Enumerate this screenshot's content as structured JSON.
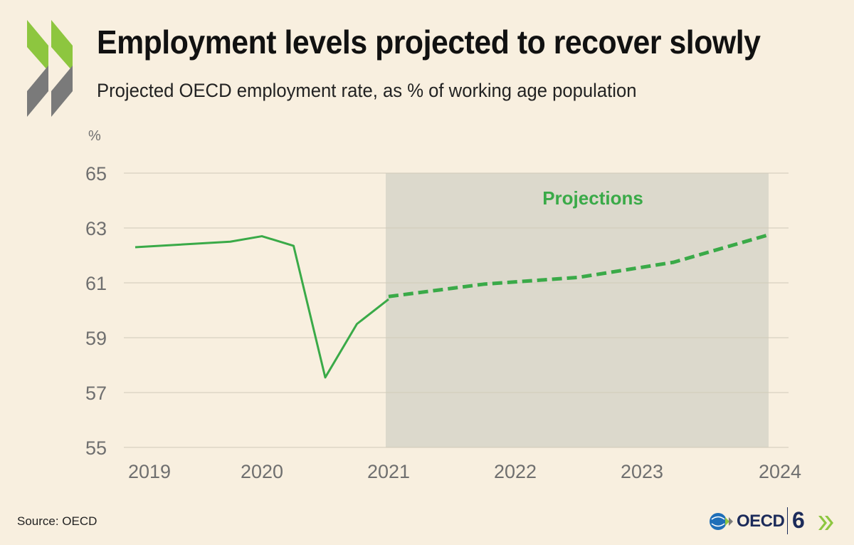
{
  "header": {
    "title": "Employment levels projected to recover slowly",
    "subtitle": "Projected OECD employment rate, as % of working age population"
  },
  "footer": {
    "source": "Source: OECD",
    "logo_text": "OECD",
    "anniversary_text": "6"
  },
  "colors": {
    "background": "#f8efdf",
    "series": "#3aaa48",
    "projection_band": "#dcd9cc",
    "axis_text": "#6f6f6f",
    "grid": "#cfcab8",
    "logo_green": "#8dc63f",
    "logo_grey": "#7a7a7a",
    "logo_navy": "#1c2b5a"
  },
  "icons": {
    "brand": "oecd-chevrons-icon",
    "globe": "oecd-globe-icon"
  },
  "chart_data": {
    "type": "line",
    "title": "Employment levels projected to recover slowly",
    "subtitle": "Projected OECD employment rate, as % of working age population",
    "ylabel": "%",
    "xlabel": "",
    "ylim": [
      55,
      65
    ],
    "xlim": [
      2019,
      2024
    ],
    "y_ticks": [
      "65",
      "63",
      "61",
      "59",
      "57",
      "55"
    ],
    "x_ticks": [
      "2019",
      "2020",
      "2021",
      "2022",
      "2023",
      "2024"
    ],
    "grid": true,
    "annotation": "Projections",
    "projection_range": [
      2021,
      2024
    ],
    "series": [
      {
        "style": "solid",
        "x": [
          2019.0,
          2019.75,
          2020.0,
          2020.25,
          2020.5,
          2020.75,
          2021.0
        ],
        "y": [
          62.3,
          62.5,
          62.7,
          62.35,
          57.55,
          59.5,
          60.4
        ]
      },
      {
        "style": "dashed",
        "x": [
          2021.0,
          2021.75,
          2022.5,
          2023.25,
          2024.0
        ],
        "y": [
          60.5,
          60.95,
          61.2,
          61.75,
          62.75
        ]
      }
    ]
  }
}
